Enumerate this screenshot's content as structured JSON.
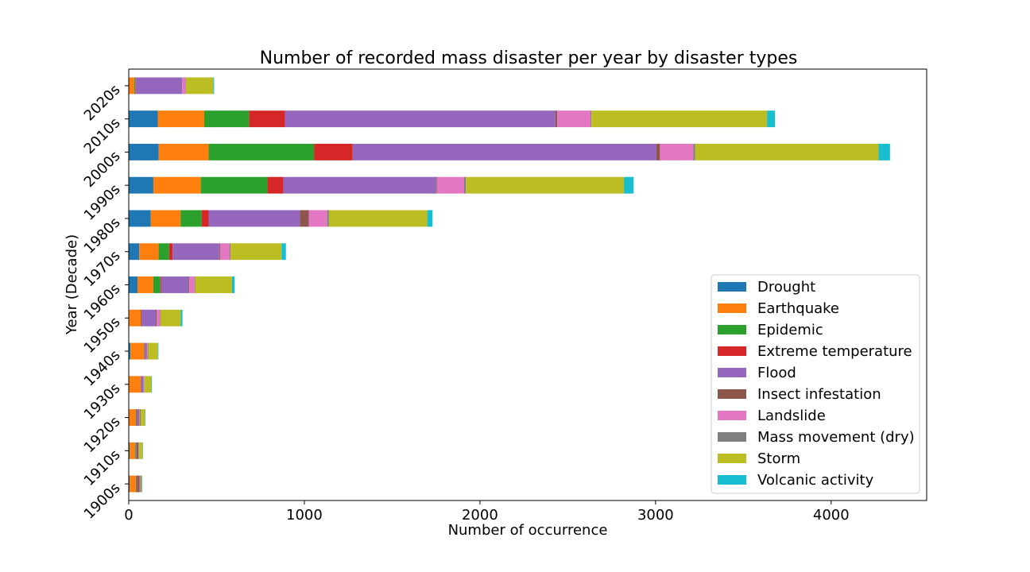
{
  "chart_data": {
    "type": "bar",
    "orientation": "horizontal",
    "stacked": true,
    "title": "Number of recorded mass disaster per year by disaster types",
    "xlabel": "Number of occurrence",
    "ylabel": "Year (Decade)",
    "xlim": [
      0,
      4544
    ],
    "xticks": [
      "0",
      "1000",
      "2000",
      "3000",
      "4000"
    ],
    "grid": false,
    "legend_position": "lower-right",
    "categories": [
      "1900s",
      "1910s",
      "1920s",
      "1930s",
      "1940s",
      "1950s",
      "1960s",
      "1970s",
      "1980s",
      "1990s",
      "2000s",
      "2010s",
      "2020s"
    ],
    "series": [
      {
        "name": "Drought",
        "color": "#1f77b4",
        "values": [
          5,
          5,
          2,
          2,
          10,
          3,
          50,
          60,
          125,
          140,
          170,
          165,
          2
        ]
      },
      {
        "name": "Earthquake",
        "color": "#ff7f0e",
        "values": [
          35,
          30,
          38,
          65,
          75,
          65,
          90,
          110,
          170,
          270,
          285,
          265,
          30
        ]
      },
      {
        "name": "Epidemic",
        "color": "#2ca02c",
        "values": [
          3,
          5,
          3,
          2,
          2,
          2,
          40,
          60,
          120,
          380,
          600,
          255,
          5
        ]
      },
      {
        "name": "Extreme temperature",
        "color": "#d62728",
        "values": [
          2,
          2,
          2,
          3,
          3,
          4,
          5,
          20,
          40,
          90,
          220,
          205,
          2
        ]
      },
      {
        "name": "Flood",
        "color": "#9467bd",
        "values": [
          2,
          3,
          10,
          12,
          8,
          80,
          155,
          265,
          520,
          870,
          1730,
          1540,
          265
        ]
      },
      {
        "name": "Insect infestation",
        "color": "#8c564b",
        "values": [
          15,
          10,
          5,
          0,
          5,
          5,
          5,
          5,
          50,
          5,
          20,
          10,
          0
        ]
      },
      {
        "name": "Landslide",
        "color": "#e377c2",
        "values": [
          3,
          2,
          3,
          3,
          5,
          20,
          30,
          55,
          105,
          155,
          190,
          190,
          20
        ]
      },
      {
        "name": "Mass movement (dry)",
        "color": "#7f7f7f",
        "values": [
          5,
          2,
          5,
          2,
          3,
          2,
          3,
          5,
          10,
          10,
          10,
          5,
          2
        ]
      },
      {
        "name": "Storm",
        "color": "#bcbd22",
        "values": [
          5,
          20,
          25,
          40,
          55,
          115,
          210,
          290,
          560,
          900,
          1045,
          1000,
          155
        ]
      },
      {
        "name": "Volcanic activity",
        "color": "#17becf",
        "values": [
          2,
          2,
          2,
          3,
          3,
          10,
          15,
          25,
          30,
          55,
          65,
          45,
          5
        ]
      }
    ]
  }
}
